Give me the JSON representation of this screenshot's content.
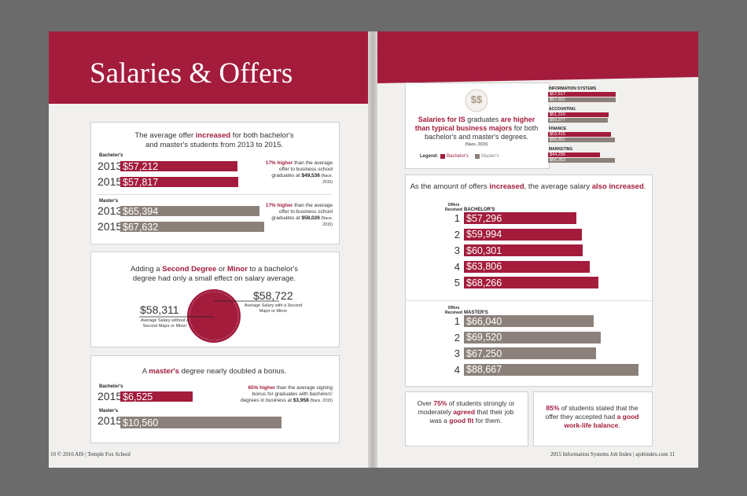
{
  "header": {
    "title": "Salaries & Offers"
  },
  "left": {
    "offers": {
      "intro": [
        "The average offer ",
        "increased",
        " for both bachelor's and master's students from 2013 to 2015."
      ],
      "groups": [
        {
          "name": "Bachelor's",
          "rows": [
            {
              "year": "2013",
              "value": 57212,
              "label": "$57,212"
            },
            {
              "year": "2015",
              "value": 57817,
              "label": "$57,817"
            }
          ],
          "note": [
            "17% higher",
            " than the average offer to business school graduates at ",
            "$49,536",
            " (Nace, 2015)"
          ]
        },
        {
          "name": "Master's",
          "rows": [
            {
              "year": "2013",
              "value": 65394,
              "label": "$65,394"
            },
            {
              "year": "2015",
              "value": 67632,
              "label": "$67,632"
            }
          ],
          "note": [
            "17% higher",
            " than the average offer to business school graduates at ",
            "$58,026",
            " (Nace, 2015)"
          ]
        }
      ]
    },
    "degree": {
      "intro": [
        "Adding a ",
        "Second Degree",
        " or ",
        "Minor",
        " to a bachelor's degree had only a small effect on salary average."
      ],
      "without": {
        "value": "$58,311",
        "caption": "Average Salary without a Second Major or Minor"
      },
      "with": {
        "value": "$58,722",
        "caption": "Average Salary with a Second Major or Minor"
      }
    },
    "bonus": {
      "intro": [
        "A ",
        "master's",
        " degree nearly doubled a bonus."
      ],
      "groups": [
        {
          "name": "Bachelor's",
          "year": "2015",
          "value": 6525,
          "label": "$6,525"
        },
        {
          "name": "Master's",
          "year": "2015",
          "value": 10560,
          "label": "$10,560"
        }
      ],
      "note": [
        "65% higher",
        " than the average signing bonus for graduates with bachelors' degrees in business at ",
        "$3,958",
        " (Nace, 2015)"
      ]
    },
    "footer": "10 © 2016 AIS | Temple Fox School"
  },
  "right": {
    "majors": {
      "icon": "$$",
      "headline": [
        "Salaries for IS",
        " graduates ",
        "are higher than typical business majors",
        " for both bachelor's and master's degrees."
      ],
      "source": "(Nace, 2015)",
      "legend_title": "Legend:",
      "legend": [
        "Bachelor's",
        "Master's"
      ],
      "rows": [
        {
          "name": "INFORMATION SYSTEMS",
          "values": [
            57617,
            57652
          ],
          "labels": [
            "$57,617",
            "$57,652"
          ]
        },
        {
          "name": "ACCOUNTING",
          "values": [
            51310,
            50377
          ],
          "labels": [
            "$51,310",
            "$50,377"
          ]
        },
        {
          "name": "FINANCE",
          "values": [
            53415,
            56851
          ],
          "labels": [
            "$53,415",
            "$56,851"
          ]
        },
        {
          "name": "MARKETING",
          "values": [
            44296,
            56353
          ],
          "labels": [
            "$44,296",
            "$56,353"
          ]
        }
      ]
    },
    "offers_count": {
      "intro": [
        "As the amount of offers ",
        "increased",
        ", the average salary ",
        "also increased",
        "."
      ],
      "axis_label": "Offers Received",
      "groups": [
        {
          "name": "BACHELOR'S",
          "rows": [
            {
              "count": "1",
              "value": 57296,
              "label": "$57,296"
            },
            {
              "count": "2",
              "value": 59994,
              "label": "$59,994"
            },
            {
              "count": "3",
              "value": 60301,
              "label": "$60,301"
            },
            {
              "count": "4",
              "value": 63806,
              "label": "$63,806"
            },
            {
              "count": "5",
              "value": 68266,
              "label": "$68,266"
            }
          ]
        },
        {
          "name": "MASTER'S",
          "rows": [
            {
              "count": "1",
              "value": 66040,
              "label": "$66,040"
            },
            {
              "count": "2",
              "value": 69520,
              "label": "$69,520"
            },
            {
              "count": "3",
              "value": 67250,
              "label": "$67,250"
            },
            {
              "count": "4",
              "value": 88667,
              "label": "$88,667"
            }
          ]
        }
      ]
    },
    "facts": [
      [
        "Over ",
        "75%",
        " of students strongly or moderately ",
        "agreed",
        " that their job was a ",
        "good fit",
        " for them."
      ],
      [
        "85%",
        " of students stated that the offer they accepted had ",
        "a good work-life balance",
        "."
      ]
    ],
    "footer": "2015 Information Systems Job Index | ajobindex.com 11"
  }
}
